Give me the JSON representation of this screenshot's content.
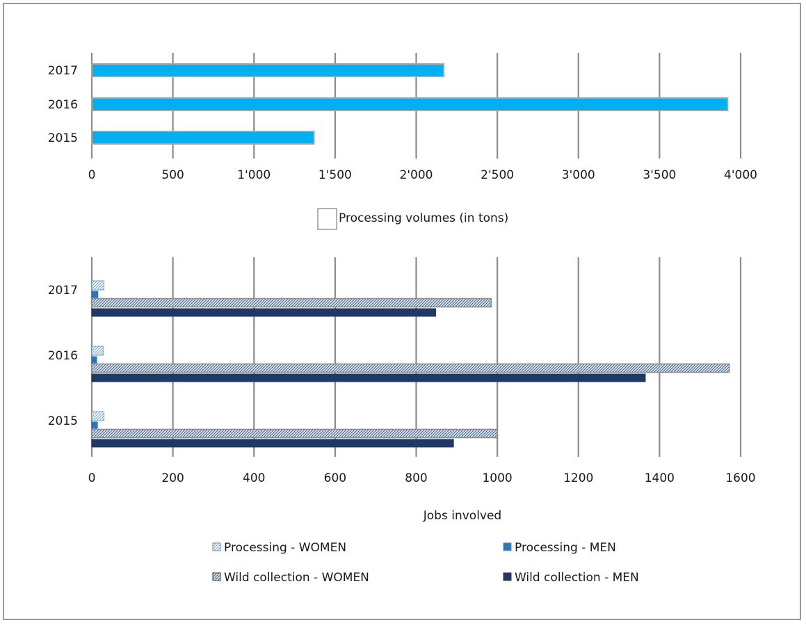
{
  "chart_data": [
    {
      "type": "bar",
      "orientation": "horizontal",
      "categories": [
        "2017",
        "2016",
        "2015"
      ],
      "series": [
        {
          "name": "Processing volumes (in tons)",
          "values": [
            2170,
            3920,
            1370
          ]
        }
      ],
      "xlim": [
        0,
        4000
      ],
      "x_ticks": [
        "0",
        "500",
        "1'000",
        "1'500",
        "2'000",
        "2'500",
        "3'000",
        "3'500",
        "4'000"
      ],
      "grid": true,
      "legend_position": "bottom",
      "colors": {
        "bar": "#00b0f0",
        "bar_edge": "#a6a6a6"
      }
    },
    {
      "type": "bar",
      "orientation": "horizontal",
      "categories": [
        "2017",
        "2016",
        "2015"
      ],
      "xlabel": "Jobs involved",
      "series": [
        {
          "name": "Processing - WOMEN",
          "values": [
            30,
            28,
            30
          ]
        },
        {
          "name": "Processing - MEN",
          "values": [
            15,
            12,
            14
          ]
        },
        {
          "name": "Wild collection  - WOMEN",
          "values": [
            985,
            1572,
            1000
          ]
        },
        {
          "name": "Wild collection  - MEN",
          "values": [
            848,
            1365,
            892
          ]
        }
      ],
      "xlim": [
        0,
        1600
      ],
      "x_ticks": [
        "0",
        "200",
        "400",
        "600",
        "800",
        "1000",
        "1200",
        "1400",
        "1600"
      ],
      "grid": true,
      "legend_position": "bottom",
      "colors": {
        "processing_women": "#9dc3e6",
        "processing_men": "#2e75b6",
        "wild_women": "#8ea9c8",
        "wild_men": "#1f3864"
      }
    }
  ]
}
